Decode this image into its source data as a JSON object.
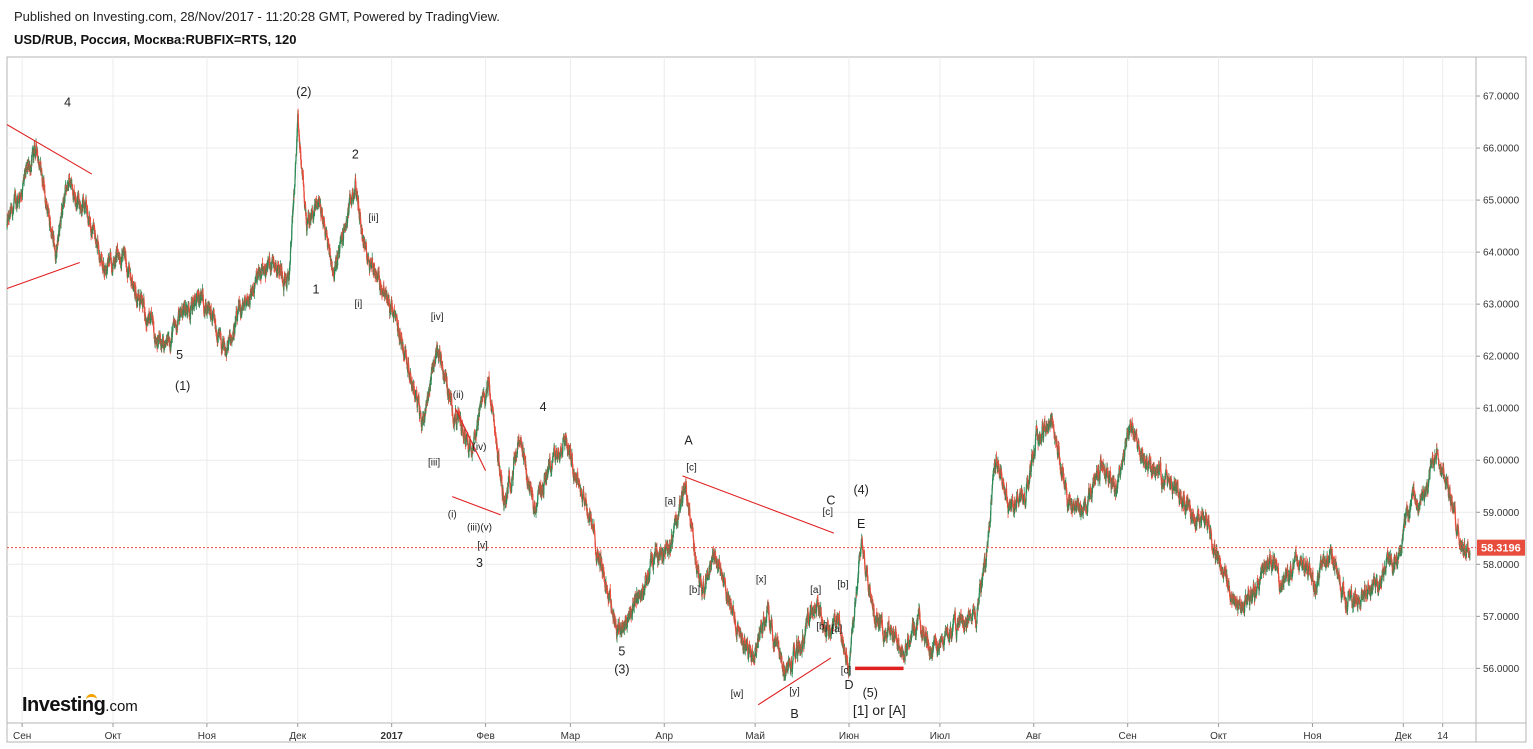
{
  "header": {
    "published": "Published on Investing.com, 28/Nov/2017 - 11:20:28 GMT, Powered by TradingView.",
    "symbol": "USD/RUB, Россия, Москва:RUBFIX=RTS, 120"
  },
  "logo": {
    "brand": "Investing",
    "suffix": ".com"
  },
  "colors": {
    "up": "#2e8b57",
    "down": "#e74c3c",
    "line": "#e02020",
    "price_tag": "#e74c3c"
  },
  "current_price": {
    "value": 58.3196,
    "label": "58.3196"
  },
  "chart_data": {
    "type": "candlestick",
    "ylim": [
      54.95,
      67.75
    ],
    "y_ticks": [
      "67.0000",
      "66.0000",
      "65.0000",
      "64.0000",
      "63.0000",
      "62.0000",
      "61.0000",
      "60.0000",
      "59.0000",
      "58.0000",
      "57.0000",
      "56.0000"
    ],
    "x_ticks": [
      "Сен",
      "Окт",
      "Ноя",
      "Дек",
      "2017",
      "Фев",
      "Мар",
      "Апр",
      "Май",
      "Июн",
      "Июл",
      "Авг",
      "Сен",
      "Окт",
      "Ноя",
      "Дек",
      "14"
    ],
    "x_range": [
      "2016-08-27",
      "2017-12-25"
    ],
    "price_path": [
      [
        "2016-08-27",
        64.5
      ],
      [
        "2016-09-06",
        66.0
      ],
      [
        "2016-09-12",
        63.9
      ],
      [
        "2016-09-16",
        65.4
      ],
      [
        "2016-09-22",
        64.8
      ],
      [
        "2016-09-28",
        63.7
      ],
      [
        "2016-10-04",
        64.0
      ],
      [
        "2016-10-10",
        63.0
      ],
      [
        "2016-10-18",
        62.1
      ],
      [
        "2016-10-24",
        62.9
      ],
      [
        "2016-10-31",
        63.1
      ],
      [
        "2016-11-07",
        62.0
      ],
      [
        "2016-11-11",
        62.7
      ],
      [
        "2016-11-18",
        63.5
      ],
      [
        "2016-11-23",
        63.9
      ],
      [
        "2016-11-28",
        63.4
      ],
      [
        "2016-12-01",
        66.4
      ],
      [
        "2016-12-04",
        64.5
      ],
      [
        "2016-12-08",
        65.0
      ],
      [
        "2016-12-13",
        63.6
      ],
      [
        "2016-12-20",
        65.3
      ],
      [
        "2016-12-23",
        64.1
      ],
      [
        "2016-12-27",
        63.6
      ],
      [
        "2016-12-31",
        63.0
      ],
      [
        "2017-01-06",
        62.0
      ],
      [
        "2017-01-11",
        60.7
      ],
      [
        "2017-01-16",
        62.2
      ],
      [
        "2017-01-21",
        61.0
      ],
      [
        "2017-01-27",
        60.3
      ],
      [
        "2017-02-02",
        61.5
      ],
      [
        "2017-02-07",
        59.2
      ],
      [
        "2017-02-12",
        60.3
      ],
      [
        "2017-02-17",
        59.1
      ],
      [
        "2017-02-21",
        59.7
      ],
      [
        "2017-02-27",
        60.5
      ],
      [
        "2017-03-06",
        59.2
      ],
      [
        "2017-03-12",
        57.8
      ],
      [
        "2017-03-17",
        56.7
      ],
      [
        "2017-03-23",
        57.3
      ],
      [
        "2017-03-29",
        58.1
      ],
      [
        "2017-04-04",
        58.5
      ],
      [
        "2017-04-08",
        59.5
      ],
      [
        "2017-04-13",
        57.5
      ],
      [
        "2017-04-18",
        58.2
      ],
      [
        "2017-04-24",
        57.0
      ],
      [
        "2017-04-30",
        56.2
      ],
      [
        "2017-05-05",
        57.1
      ],
      [
        "2017-05-11",
        55.9
      ],
      [
        "2017-05-16",
        56.5
      ],
      [
        "2017-05-21",
        57.3
      ],
      [
        "2017-05-24",
        56.7
      ],
      [
        "2017-05-28",
        57.0
      ],
      [
        "2017-06-01",
        56.0
      ],
      [
        "2017-06-05",
        58.6
      ],
      [
        "2017-06-09",
        57.0
      ],
      [
        "2017-06-14",
        56.7
      ],
      [
        "2017-06-19",
        56.4
      ],
      [
        "2017-06-24",
        56.9
      ],
      [
        "2017-06-29",
        56.3
      ],
      [
        "2017-07-03",
        56.6
      ],
      [
        "2017-07-08",
        56.9
      ],
      [
        "2017-07-13",
        57.0
      ],
      [
        "2017-07-16",
        58.0
      ],
      [
        "2017-07-19",
        60.0
      ],
      [
        "2017-07-24",
        59.1
      ],
      [
        "2017-07-29",
        59.3
      ],
      [
        "2017-08-02",
        60.4
      ],
      [
        "2017-08-07",
        60.8
      ],
      [
        "2017-08-12",
        59.2
      ],
      [
        "2017-08-17",
        59.0
      ],
      [
        "2017-08-23",
        59.9
      ],
      [
        "2017-08-28",
        59.5
      ],
      [
        "2017-09-02",
        60.6
      ],
      [
        "2017-09-07",
        59.9
      ],
      [
        "2017-09-12",
        59.7
      ],
      [
        "2017-09-17",
        59.4
      ],
      [
        "2017-09-22",
        59.0
      ],
      [
        "2017-09-27",
        58.9
      ],
      [
        "2017-10-02",
        57.9
      ],
      [
        "2017-10-07",
        57.2
      ],
      [
        "2017-10-12",
        57.4
      ],
      [
        "2017-10-18",
        58.1
      ],
      [
        "2017-10-22",
        57.6
      ],
      [
        "2017-10-28",
        58.1
      ],
      [
        "2017-11-02",
        57.6
      ],
      [
        "2017-11-07",
        58.3
      ],
      [
        "2017-11-12",
        57.3
      ],
      [
        "2017-11-18",
        57.4
      ],
      [
        "2017-11-24",
        57.8
      ],
      [
        "2017-11-29",
        58.2
      ],
      [
        "2017-12-04",
        59.3
      ],
      [
        "2017-12-08",
        59.2
      ],
      [
        "2017-12-12",
        60.3
      ],
      [
        "2017-12-16",
        59.4
      ],
      [
        "2017-12-20",
        58.4
      ],
      [
        "2017-12-23",
        58.3
      ]
    ],
    "trend_lines": [
      {
        "from": [
          "2016-08-27",
          66.45
        ],
        "to": [
          "2016-09-24",
          65.5
        ]
      },
      {
        "from": [
          "2016-08-27",
          63.3
        ],
        "to": [
          "2016-09-20",
          63.8
        ]
      },
      {
        "from": [
          "2017-01-22",
          61.0
        ],
        "to": [
          "2017-02-01",
          59.8
        ]
      },
      {
        "from": [
          "2017-01-21",
          59.3
        ],
        "to": [
          "2017-02-06",
          58.95
        ]
      },
      {
        "from": [
          "2017-04-07",
          59.7
        ],
        "to": [
          "2017-05-27",
          58.6
        ]
      },
      {
        "from": [
          "2017-05-02",
          55.3
        ],
        "to": [
          "2017-05-26",
          56.2
        ]
      },
      {
        "from": [
          "2017-06-03",
          56.0
        ],
        "to": [
          "2017-06-19",
          56.0
        ],
        "thick": true
      }
    ],
    "annotations": [
      {
        "text": "4",
        "at": [
          "2016-09-16",
          66.8
        ]
      },
      {
        "text": "(2)",
        "at": [
          "2016-12-03",
          67.0
        ]
      },
      {
        "text": "2",
        "at": [
          "2016-12-20",
          65.8
        ]
      },
      {
        "text": "[ii]",
        "at": [
          "2016-12-26",
          64.6
        ]
      },
      {
        "text": "1",
        "at": [
          "2016-12-07",
          63.2
        ]
      },
      {
        "text": "[i]",
        "at": [
          "2016-12-21",
          62.95
        ]
      },
      {
        "text": "[iv]",
        "at": [
          "2017-01-16",
          62.7
        ]
      },
      {
        "text": "5",
        "at": [
          "2016-10-23",
          61.95
        ]
      },
      {
        "text": "(1)",
        "at": [
          "2016-10-24",
          61.35
        ]
      },
      {
        "text": "(ii)",
        "at": [
          "2017-01-23",
          61.2
        ]
      },
      {
        "text": "4",
        "at": [
          "2017-02-20",
          60.95
        ]
      },
      {
        "text": "[iii]",
        "at": [
          "2017-01-15",
          59.9
        ]
      },
      {
        "text": "(iv)",
        "at": [
          "2017-01-30",
          60.2
        ]
      },
      {
        "text": "(i)",
        "at": [
          "2017-01-21",
          58.9
        ]
      },
      {
        "text": "(iii)(v)",
        "at": [
          "2017-01-30",
          58.65
        ]
      },
      {
        "text": "[v]",
        "at": [
          "2017-01-31",
          58.3
        ]
      },
      {
        "text": "3",
        "at": [
          "2017-01-30",
          57.95
        ]
      },
      {
        "text": "A",
        "at": [
          "2017-04-09",
          60.3
        ]
      },
      {
        "text": "[c]",
        "at": [
          "2017-04-10",
          59.8
        ]
      },
      {
        "text": "[a]",
        "at": [
          "2017-04-03",
          59.15
        ]
      },
      {
        "text": "C",
        "at": [
          "2017-05-26",
          59.15
        ]
      },
      {
        "text": "(4)",
        "at": [
          "2017-06-05",
          59.35
        ]
      },
      {
        "text": "[c]",
        "at": [
          "2017-05-25",
          58.95
        ]
      },
      {
        "text": "E",
        "at": [
          "2017-06-05",
          58.7
        ]
      },
      {
        "text": "[x]",
        "at": [
          "2017-05-03",
          57.65
        ]
      },
      {
        "text": "[b]",
        "at": [
          "2017-04-11",
          57.45
        ]
      },
      {
        "text": "[a]",
        "at": [
          "2017-05-21",
          57.45
        ]
      },
      {
        "text": "[b]",
        "at": [
          "2017-05-30",
          57.55
        ]
      },
      {
        "text": "[b]",
        "at": [
          "2017-05-23",
          56.75
        ]
      },
      {
        "text": "[a]",
        "at": [
          "2017-05-28",
          56.7
        ]
      },
      {
        "text": "5",
        "at": [
          "2017-03-18",
          56.25
        ]
      },
      {
        "text": "(3)",
        "at": [
          "2017-03-18",
          55.9
        ]
      },
      {
        "text": "[c]",
        "at": [
          "2017-05-31",
          55.9
        ]
      },
      {
        "text": "D",
        "at": [
          "2017-06-01",
          55.6
        ]
      },
      {
        "text": "[w]",
        "at": [
          "2017-04-25",
          55.45
        ]
      },
      {
        "text": "[y]",
        "at": [
          "2017-05-14",
          55.5
        ]
      },
      {
        "text": "B",
        "at": [
          "2017-05-14",
          55.05
        ]
      },
      {
        "text": "(5)",
        "at": [
          "2017-06-08",
          55.45
        ]
      },
      {
        "text": "[1] or [A]",
        "at": [
          "2017-06-11",
          55.1
        ]
      }
    ]
  }
}
